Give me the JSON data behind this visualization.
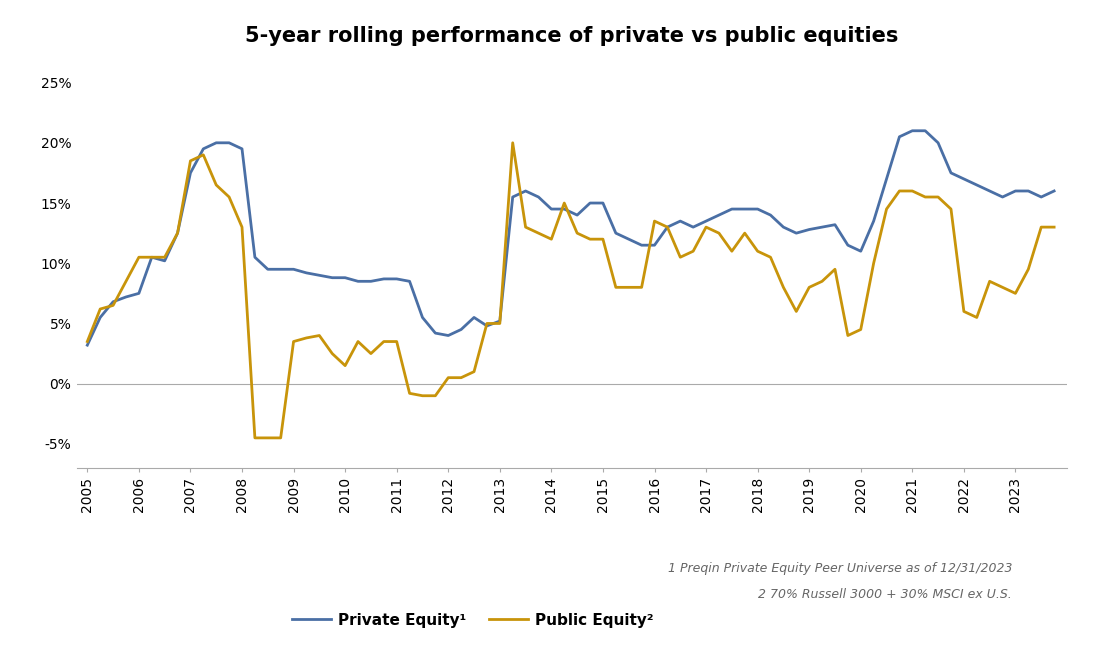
{
  "title": "5-year rolling performance of private vs public equities",
  "private_equity": {
    "label": "Private Equity¹",
    "color": "#4a6fa5",
    "x": [
      2005.0,
      2005.25,
      2005.5,
      2005.75,
      2006.0,
      2006.25,
      2006.5,
      2006.75,
      2007.0,
      2007.25,
      2007.5,
      2007.75,
      2008.0,
      2008.25,
      2008.5,
      2008.75,
      2009.0,
      2009.25,
      2009.5,
      2009.75,
      2010.0,
      2010.25,
      2010.5,
      2010.75,
      2011.0,
      2011.25,
      2011.5,
      2011.75,
      2012.0,
      2012.25,
      2012.5,
      2012.75,
      2013.0,
      2013.25,
      2013.5,
      2013.75,
      2014.0,
      2014.25,
      2014.5,
      2014.75,
      2015.0,
      2015.25,
      2015.5,
      2015.75,
      2016.0,
      2016.25,
      2016.5,
      2016.75,
      2017.0,
      2017.25,
      2017.5,
      2017.75,
      2018.0,
      2018.25,
      2018.5,
      2018.75,
      2019.0,
      2019.25,
      2019.5,
      2019.75,
      2020.0,
      2020.25,
      2020.5,
      2020.75,
      2021.0,
      2021.25,
      2021.5,
      2021.75,
      2022.0,
      2022.25,
      2022.5,
      2022.75,
      2023.0,
      2023.25,
      2023.5,
      2023.75
    ],
    "y": [
      3.2,
      5.5,
      6.8,
      7.2,
      7.5,
      10.5,
      10.2,
      12.5,
      17.5,
      19.5,
      20.0,
      20.0,
      19.5,
      10.5,
      9.5,
      9.5,
      9.5,
      9.2,
      9.0,
      8.8,
      8.8,
      8.5,
      8.5,
      8.7,
      8.7,
      8.5,
      5.5,
      4.2,
      4.0,
      4.5,
      5.5,
      4.8,
      5.2,
      15.5,
      16.0,
      15.5,
      14.5,
      14.5,
      14.0,
      15.0,
      15.0,
      12.5,
      12.0,
      11.5,
      11.5,
      13.0,
      13.5,
      13.0,
      13.5,
      14.0,
      14.5,
      14.5,
      14.5,
      14.0,
      13.0,
      12.5,
      12.8,
      13.0,
      13.2,
      11.5,
      11.0,
      13.5,
      17.0,
      20.5,
      21.0,
      21.0,
      20.0,
      17.5,
      17.0,
      16.5,
      16.0,
      15.5,
      16.0,
      16.0,
      15.5,
      16.0
    ]
  },
  "public_equity": {
    "label": "Public Equity²",
    "color": "#C8940A",
    "x": [
      2005.0,
      2005.25,
      2005.5,
      2005.75,
      2006.0,
      2006.25,
      2006.5,
      2006.75,
      2007.0,
      2007.25,
      2007.5,
      2007.75,
      2008.0,
      2008.25,
      2008.5,
      2008.75,
      2009.0,
      2009.25,
      2009.5,
      2009.75,
      2010.0,
      2010.25,
      2010.5,
      2010.75,
      2011.0,
      2011.25,
      2011.5,
      2011.75,
      2012.0,
      2012.25,
      2012.5,
      2012.75,
      2013.0,
      2013.25,
      2013.5,
      2013.75,
      2014.0,
      2014.25,
      2014.5,
      2014.75,
      2015.0,
      2015.25,
      2015.5,
      2015.75,
      2016.0,
      2016.25,
      2016.5,
      2016.75,
      2017.0,
      2017.25,
      2017.5,
      2017.75,
      2018.0,
      2018.25,
      2018.5,
      2018.75,
      2019.0,
      2019.25,
      2019.5,
      2019.75,
      2020.0,
      2020.25,
      2020.5,
      2020.75,
      2021.0,
      2021.25,
      2021.5,
      2021.75,
      2022.0,
      2022.25,
      2022.5,
      2022.75,
      2023.0,
      2023.25,
      2023.5,
      2023.75
    ],
    "y": [
      3.5,
      6.2,
      6.5,
      8.5,
      10.5,
      10.5,
      10.5,
      12.5,
      18.5,
      19.0,
      16.5,
      15.5,
      13.0,
      -4.5,
      -4.5,
      -4.5,
      3.5,
      3.8,
      4.0,
      2.5,
      1.5,
      3.5,
      2.5,
      3.5,
      3.5,
      -0.8,
      -1.0,
      -1.0,
      0.5,
      0.5,
      1.0,
      5.0,
      5.0,
      20.0,
      13.0,
      12.5,
      12.0,
      15.0,
      12.5,
      12.0,
      12.0,
      8.0,
      8.0,
      8.0,
      13.5,
      13.0,
      10.5,
      11.0,
      13.0,
      12.5,
      11.0,
      12.5,
      11.0,
      10.5,
      8.0,
      6.0,
      8.0,
      8.5,
      9.5,
      4.0,
      4.5,
      10.0,
      14.5,
      16.0,
      16.0,
      15.5,
      15.5,
      14.5,
      6.0,
      5.5,
      8.5,
      8.0,
      7.5,
      9.5,
      13.0,
      13.0
    ]
  },
  "footnote1": "1 Preqin Private Equity Peer Universe as of 12/31/2023",
  "footnote2": "2 70% Russell 3000 + 30% MSCI ex U.S.",
  "xlim": [
    2004.8,
    2024.0
  ],
  "ylim": [
    -7,
    27
  ],
  "yticks": [
    -5,
    0,
    5,
    10,
    15,
    20,
    25
  ],
  "xticks": [
    2005,
    2006,
    2007,
    2008,
    2009,
    2010,
    2011,
    2012,
    2013,
    2014,
    2015,
    2016,
    2017,
    2018,
    2019,
    2020,
    2021,
    2022,
    2023
  ],
  "background_color": "#FFFFFF",
  "zero_line_color": "#AAAAAA",
  "spine_color": "#AAAAAA",
  "title_fontsize": 15,
  "tick_fontsize": 10,
  "legend_fontsize": 11,
  "footnote_fontsize": 9,
  "line_width": 2.0
}
